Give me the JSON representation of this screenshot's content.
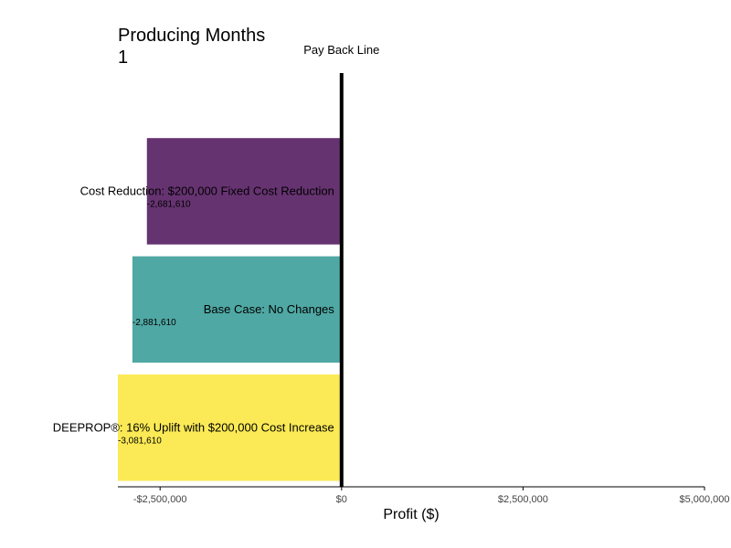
{
  "chart_data": {
    "type": "bar",
    "orientation": "horizontal",
    "title": "Producing Months\n1",
    "xlabel": "Profit ($)",
    "ylabel": "",
    "xlim": [
      -3081610,
      5000000
    ],
    "grid": false,
    "reference_line": {
      "label": "Pay Back Line",
      "x": 0
    },
    "x_ticks": [
      -2500000,
      0,
      2500000,
      5000000
    ],
    "x_tick_labels": [
      "-$2,500,000",
      "$0",
      "$2,500,000",
      "$5,000,000"
    ],
    "categories": [
      "Cost Reduction: $200,000 Fixed Cost Reduction",
      "Base Case: No Changes",
      "DEEPROP®: 16% Uplift with $200,000 Cost Increase"
    ],
    "values": [
      -2681610,
      -2881610,
      -3081610
    ],
    "value_labels": [
      "-2,681,610",
      "-2,881,610",
      "-3,081,610"
    ],
    "colors": [
      "#663371",
      "#4fa8a4",
      "#fbea55"
    ]
  }
}
